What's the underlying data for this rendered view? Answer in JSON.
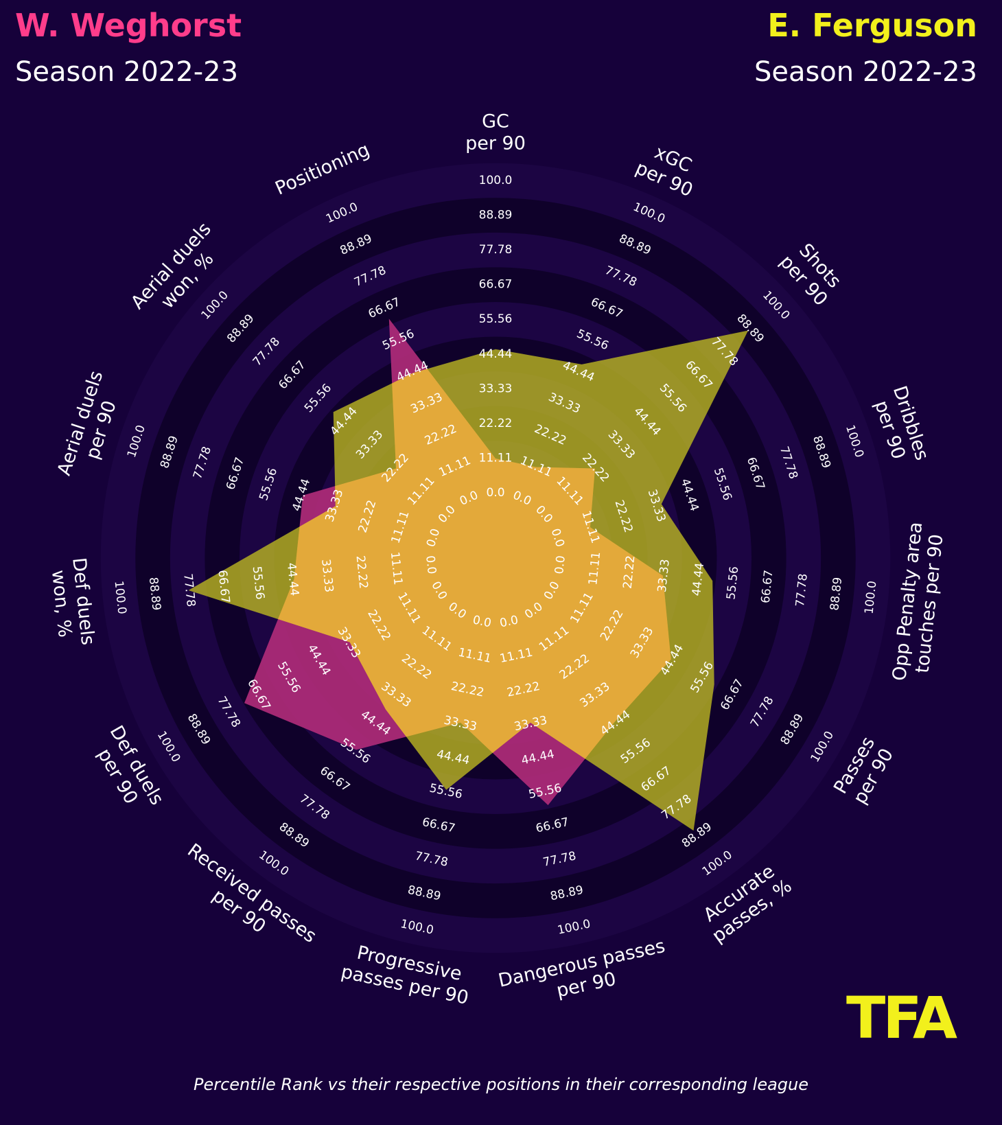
{
  "player_a": {
    "name": "W. Weghorst",
    "season": "Season 2022-23"
  },
  "player_b": {
    "name": "E. Ferguson",
    "season": "Season 2022-23"
  },
  "logo_text": "TFA",
  "footer_note": "Percentile Rank vs their respective positions in their corresponding league",
  "colors": {
    "background": "#16013a",
    "player_a": "#ff3d8b",
    "player_b": "#f2f01c",
    "player_a_fill": "#b32c7a",
    "player_b_fill": "#bcb622",
    "overlap_fill": "#e3a93a",
    "label": "#ffffff"
  },
  "chart_data": {
    "type": "radar",
    "title": "",
    "value_range": [
      0,
      100
    ],
    "ring_values": [
      "0.0",
      "11.11",
      "22.22",
      "33.33",
      "44.44",
      "55.56",
      "66.67",
      "77.78",
      "88.89",
      "100.0"
    ],
    "metrics": [
      {
        "label": [
          "GC",
          "per 90"
        ]
      },
      {
        "label": [
          "xGC",
          "per 90"
        ]
      },
      {
        "label": [
          "Shots",
          "per 90"
        ]
      },
      {
        "label": [
          "Dribbles",
          "per 90"
        ]
      },
      {
        "label": [
          "Opp Penalty area",
          "touches per 90"
        ]
      },
      {
        "label": [
          "Passes",
          "per 90"
        ]
      },
      {
        "label": [
          "Accurate",
          "passes, %"
        ]
      },
      {
        "label": [
          "Dangerous passes",
          "per 90"
        ]
      },
      {
        "label": [
          "Progressive",
          "passes per 90"
        ]
      },
      {
        "label": [
          "Received passes",
          "per 90"
        ]
      },
      {
        "label": [
          "Def duels",
          "per 90"
        ]
      },
      {
        "label": [
          "Def duels",
          "won, %"
        ]
      },
      {
        "label": [
          "Aerial duels",
          "per 90"
        ]
      },
      {
        "label": [
          "Aerial duels",
          "won, %"
        ]
      },
      {
        "label": [
          "Positioning"
        ]
      }
    ],
    "series": [
      {
        "name": "W. Weghorst",
        "values": [
          11,
          11,
          22,
          11,
          33,
          44,
          44,
          60,
          33,
          55,
          72,
          44,
          44,
          22,
          63
        ]
      },
      {
        "name": "E. Ferguson",
        "values": [
          46,
          47,
          88,
          35,
          49,
          60,
          87,
          33,
          55,
          39,
          33,
          78,
          33,
          49,
          44
        ]
      }
    ]
  }
}
